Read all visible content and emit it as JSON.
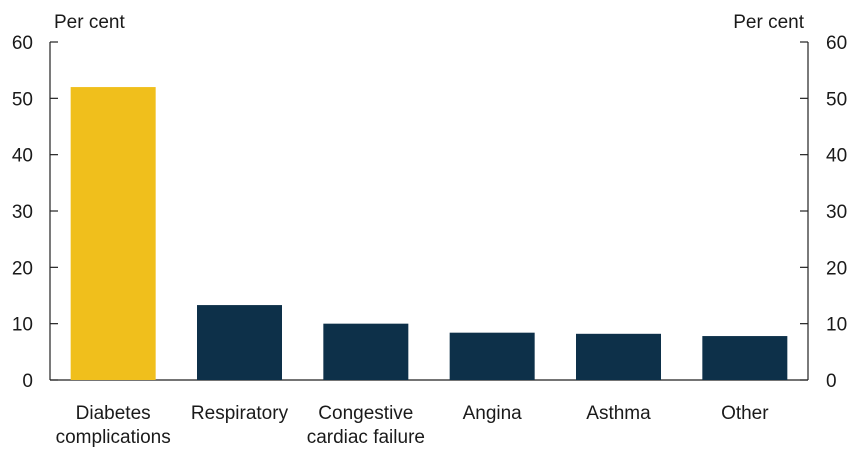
{
  "chart_data": {
    "type": "bar",
    "categories": [
      [
        "Diabetes",
        "complications"
      ],
      [
        "Respiratory"
      ],
      [
        "Congestive",
        "cardiac failure"
      ],
      [
        "Angina"
      ],
      [
        "Asthma"
      ],
      [
        "Other"
      ]
    ],
    "values": [
      52,
      13.3,
      10,
      8.4,
      8.2,
      7.8
    ],
    "bar_colors": [
      "#f0bf1c",
      "#0d3049",
      "#0d3049",
      "#0d3049",
      "#0d3049",
      "#0d3049"
    ],
    "title": "",
    "ylabel_left": "Per cent",
    "ylabel_right": "Per cent",
    "ylim": [
      0,
      60
    ],
    "yticks": [
      0,
      10,
      20,
      30,
      40,
      50,
      60
    ],
    "grid": false,
    "legend": "none"
  }
}
